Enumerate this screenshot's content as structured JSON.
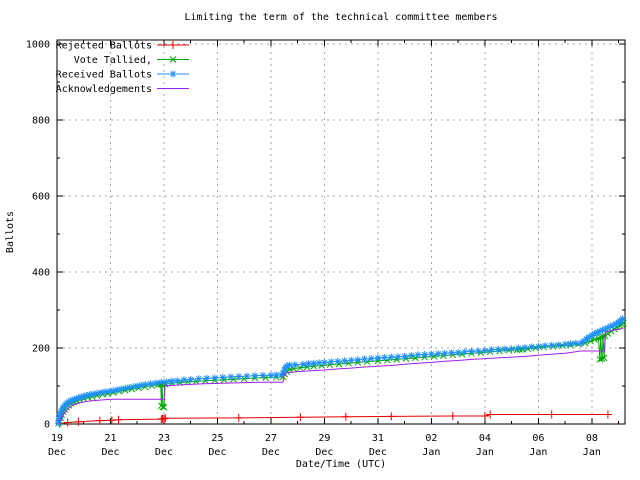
{
  "chart_data": {
    "type": "line",
    "title": "Limiting the term of the technical committee members",
    "xlabel": "Date/Time (UTC)",
    "ylabel": "Ballots",
    "ylim": [
      0,
      1000
    ],
    "y_display_max": 1010.5,
    "y_major_step": 200,
    "y_minor_step": 100,
    "x_max_days": 21.24,
    "grid": true,
    "legend_position": "top-left",
    "grid_color": "#a8a8a8",
    "x_ticks": [
      {
        "day": 0,
        "line1": "19",
        "line2": "Dec"
      },
      {
        "day": 2,
        "line1": "21",
        "line2": "Dec"
      },
      {
        "day": 4,
        "line1": "23",
        "line2": "Dec"
      },
      {
        "day": 6,
        "line1": "25",
        "line2": "Dec"
      },
      {
        "day": 8,
        "line1": "27",
        "line2": "Dec"
      },
      {
        "day": 10,
        "line1": "29",
        "line2": "Dec"
      },
      {
        "day": 12,
        "line1": "31",
        "line2": "Dec"
      },
      {
        "day": 14,
        "line1": "02",
        "line2": "Jan"
      },
      {
        "day": 16,
        "line1": "04",
        "line2": "Jan"
      },
      {
        "day": 18,
        "line1": "06",
        "line2": "Jan"
      },
      {
        "day": 20,
        "line1": "08",
        "line2": "Jan"
      }
    ],
    "y_tick_labels": [
      "0",
      "200",
      "400",
      "600",
      "800",
      "1000"
    ],
    "series": [
      {
        "name": "Rejected Ballots",
        "color": "#e60000",
        "marker": "plus",
        "points": [
          [
            0.1,
            1
          ],
          [
            0.4,
            4
          ],
          [
            0.8,
            6
          ],
          [
            1.6,
            9
          ],
          [
            2.05,
            10
          ],
          [
            2.3,
            11
          ],
          [
            3.9,
            13
          ],
          [
            3.95,
            14
          ],
          [
            4.0,
            14
          ],
          [
            4.05,
            15
          ],
          [
            6.8,
            16
          ],
          [
            9.1,
            18
          ],
          [
            10.8,
            19
          ],
          [
            12.5,
            20
          ],
          [
            14.8,
            21
          ],
          [
            16.0,
            21
          ],
          [
            16.2,
            25
          ],
          [
            18.5,
            25
          ],
          [
            20.6,
            25
          ]
        ]
      },
      {
        "name": "Vote Tallied,",
        "color": "#00a800",
        "marker": "cross",
        "points": [
          [
            0.06,
            2
          ],
          [
            0.1,
            8
          ],
          [
            0.14,
            16
          ],
          [
            0.18,
            24
          ],
          [
            0.23,
            32
          ],
          [
            0.29,
            38
          ],
          [
            0.36,
            44
          ],
          [
            0.44,
            49
          ],
          [
            0.53,
            54
          ],
          [
            0.63,
            58
          ],
          [
            0.74,
            61
          ],
          [
            0.86,
            64
          ],
          [
            1.0,
            67
          ],
          [
            1.15,
            70
          ],
          [
            1.32,
            72
          ],
          [
            1.5,
            75
          ],
          [
            1.7,
            78
          ],
          [
            1.9,
            80
          ],
          [
            2.1,
            83
          ],
          [
            2.32,
            86
          ],
          [
            2.55,
            89
          ],
          [
            2.8,
            92
          ],
          [
            3.05,
            95
          ],
          [
            3.3,
            98
          ],
          [
            3.55,
            101
          ],
          [
            3.8,
            104
          ],
          [
            3.88,
            105
          ],
          [
            3.9,
            48
          ],
          [
            3.93,
            104
          ],
          [
            3.96,
            45
          ],
          [
            4.0,
            44
          ],
          [
            4.03,
            105
          ],
          [
            4.06,
            107
          ],
          [
            4.3,
            108
          ],
          [
            4.6,
            109
          ],
          [
            4.9,
            111
          ],
          [
            5.2,
            112
          ],
          [
            5.55,
            114
          ],
          [
            5.9,
            115
          ],
          [
            6.25,
            116
          ],
          [
            6.6,
            118
          ],
          [
            7.0,
            119
          ],
          [
            7.4,
            121
          ],
          [
            7.8,
            122
          ],
          [
            8.2,
            123
          ],
          [
            8.45,
            124
          ],
          [
            8.52,
            131
          ],
          [
            8.6,
            138
          ],
          [
            8.7,
            143
          ],
          [
            8.85,
            146
          ],
          [
            9.1,
            148
          ],
          [
            9.35,
            150
          ],
          [
            9.6,
            152
          ],
          [
            9.9,
            154
          ],
          [
            10.2,
            156
          ],
          [
            10.55,
            158
          ],
          [
            10.9,
            160
          ],
          [
            11.25,
            162
          ],
          [
            11.6,
            164
          ],
          [
            12.0,
            166
          ],
          [
            12.35,
            168
          ],
          [
            12.7,
            170
          ],
          [
            13.05,
            172
          ],
          [
            13.4,
            174
          ],
          [
            13.75,
            176
          ],
          [
            14.1,
            178
          ],
          [
            14.45,
            180
          ],
          [
            14.8,
            182
          ],
          [
            15.15,
            184
          ],
          [
            15.5,
            186
          ],
          [
            15.85,
            188
          ],
          [
            16.2,
            190
          ],
          [
            16.55,
            192
          ],
          [
            16.9,
            194
          ],
          [
            17.2,
            195
          ],
          [
            17.3,
            196
          ],
          [
            17.4,
            196
          ],
          [
            17.6,
            198
          ],
          [
            17.9,
            200
          ],
          [
            18.2,
            202
          ],
          [
            18.55,
            204
          ],
          [
            18.9,
            206
          ],
          [
            19.2,
            208
          ],
          [
            19.5,
            210
          ],
          [
            19.75,
            213
          ],
          [
            19.95,
            218
          ],
          [
            20.1,
            222
          ],
          [
            20.25,
            226
          ],
          [
            20.3,
            170
          ],
          [
            20.33,
            228
          ],
          [
            20.38,
            172
          ],
          [
            20.42,
            230
          ],
          [
            20.46,
            174
          ],
          [
            20.5,
            232
          ],
          [
            20.6,
            238
          ],
          [
            20.72,
            244
          ],
          [
            20.85,
            250
          ],
          [
            20.95,
            255
          ],
          [
            21.05,
            259
          ],
          [
            21.12,
            262
          ],
          [
            21.18,
            265
          ]
        ]
      },
      {
        "name": "Received Ballots",
        "color": "#1e90ff",
        "marker": "asterisk",
        "points": [
          [
            0.05,
            3
          ],
          [
            0.08,
            10
          ],
          [
            0.1,
            18
          ],
          [
            0.12,
            25
          ],
          [
            0.14,
            30
          ],
          [
            0.17,
            35
          ],
          [
            0.2,
            40
          ],
          [
            0.24,
            44
          ],
          [
            0.28,
            48
          ],
          [
            0.33,
            52
          ],
          [
            0.38,
            55
          ],
          [
            0.44,
            58
          ],
          [
            0.5,
            61
          ],
          [
            0.57,
            63
          ],
          [
            0.64,
            65
          ],
          [
            0.72,
            67
          ],
          [
            0.8,
            69
          ],
          [
            0.9,
            71
          ],
          [
            1.0,
            73
          ],
          [
            1.1,
            75
          ],
          [
            1.22,
            77
          ],
          [
            1.35,
            79
          ],
          [
            1.5,
            81
          ],
          [
            1.65,
            83
          ],
          [
            1.8,
            85
          ],
          [
            1.95,
            86
          ],
          [
            2.1,
            88
          ],
          [
            2.25,
            90
          ],
          [
            2.4,
            92
          ],
          [
            2.55,
            94
          ],
          [
            2.7,
            96
          ],
          [
            2.85,
            98
          ],
          [
            3.0,
            100
          ],
          [
            3.15,
            102
          ],
          [
            3.3,
            104
          ],
          [
            3.5,
            106
          ],
          [
            3.7,
            108
          ],
          [
            3.9,
            110
          ],
          [
            4.1,
            111
          ],
          [
            4.3,
            113
          ],
          [
            4.5,
            114
          ],
          [
            4.75,
            116
          ],
          [
            5.0,
            117
          ],
          [
            5.3,
            119
          ],
          [
            5.6,
            120
          ],
          [
            5.9,
            121
          ],
          [
            6.2,
            123
          ],
          [
            6.5,
            124
          ],
          [
            6.8,
            125
          ],
          [
            7.1,
            126
          ],
          [
            7.4,
            127
          ],
          [
            7.7,
            128
          ],
          [
            8.0,
            128
          ],
          [
            8.2,
            129
          ],
          [
            8.4,
            129
          ],
          [
            8.45,
            133
          ],
          [
            8.5,
            142
          ],
          [
            8.55,
            149
          ],
          [
            8.6,
            153
          ],
          [
            8.7,
            155
          ],
          [
            8.9,
            156
          ],
          [
            9.2,
            157
          ],
          [
            9.4,
            159
          ],
          [
            9.6,
            160
          ],
          [
            9.8,
            161
          ],
          [
            10.0,
            162
          ],
          [
            10.25,
            164
          ],
          [
            10.5,
            165
          ],
          [
            10.75,
            166
          ],
          [
            11.0,
            168
          ],
          [
            11.25,
            169
          ],
          [
            11.5,
            171
          ],
          [
            11.75,
            172
          ],
          [
            12.0,
            174
          ],
          [
            12.25,
            175
          ],
          [
            12.5,
            176
          ],
          [
            12.75,
            177
          ],
          [
            13.0,
            178
          ],
          [
            13.25,
            180
          ],
          [
            13.5,
            182
          ],
          [
            13.75,
            183
          ],
          [
            14.0,
            184
          ],
          [
            14.25,
            185
          ],
          [
            14.5,
            186
          ],
          [
            14.75,
            187
          ],
          [
            15.0,
            188
          ],
          [
            15.25,
            190
          ],
          [
            15.5,
            191
          ],
          [
            15.75,
            192
          ],
          [
            16.0,
            193
          ],
          [
            16.25,
            195
          ],
          [
            16.5,
            196
          ],
          [
            16.75,
            197
          ],
          [
            17.0,
            198
          ],
          [
            17.25,
            200
          ],
          [
            17.5,
            201
          ],
          [
            17.75,
            203
          ],
          [
            18.0,
            204
          ],
          [
            18.25,
            206
          ],
          [
            18.5,
            207
          ],
          [
            18.75,
            208
          ],
          [
            19.0,
            210
          ],
          [
            19.2,
            211
          ],
          [
            19.4,
            212
          ],
          [
            19.6,
            213
          ],
          [
            19.7,
            218
          ],
          [
            19.8,
            224
          ],
          [
            19.9,
            229
          ],
          [
            20.0,
            233
          ],
          [
            20.1,
            237
          ],
          [
            20.2,
            241
          ],
          [
            20.3,
            244
          ],
          [
            20.4,
            247
          ],
          [
            20.5,
            250
          ],
          [
            20.6,
            253
          ],
          [
            20.7,
            257
          ],
          [
            20.8,
            260
          ],
          [
            20.9,
            263
          ],
          [
            21.0,
            267
          ],
          [
            21.05,
            270
          ],
          [
            21.1,
            273
          ],
          [
            21.15,
            277
          ]
        ]
      },
      {
        "name": "Acknowledgements",
        "color": "#a020f0",
        "marker": "none",
        "points": [
          [
            0.08,
            4
          ],
          [
            0.15,
            14
          ],
          [
            0.25,
            26
          ],
          [
            0.35,
            36
          ],
          [
            0.45,
            43
          ],
          [
            0.6,
            50
          ],
          [
            0.8,
            55
          ],
          [
            1.0,
            58
          ],
          [
            1.3,
            61
          ],
          [
            1.6,
            63
          ],
          [
            2.0,
            65
          ],
          [
            4.02,
            65
          ],
          [
            4.04,
            100
          ],
          [
            4.4,
            102
          ],
          [
            4.9,
            104
          ],
          [
            5.5,
            106
          ],
          [
            6.2,
            107
          ],
          [
            7.0,
            109
          ],
          [
            7.9,
            110
          ],
          [
            8.45,
            110
          ],
          [
            8.5,
            132
          ],
          [
            8.6,
            135
          ],
          [
            9.0,
            138
          ],
          [
            9.5,
            140
          ],
          [
            10.0,
            142
          ],
          [
            10.5,
            145
          ],
          [
            11.0,
            147
          ],
          [
            11.5,
            150
          ],
          [
            12.0,
            152
          ],
          [
            12.5,
            154
          ],
          [
            13.0,
            157
          ],
          [
            13.5,
            160
          ],
          [
            14.0,
            162
          ],
          [
            14.5,
            165
          ],
          [
            15.0,
            167
          ],
          [
            15.5,
            170
          ],
          [
            16.0,
            172
          ],
          [
            16.5,
            174
          ],
          [
            17.0,
            176
          ],
          [
            17.5,
            178
          ],
          [
            18.0,
            181
          ],
          [
            18.5,
            184
          ],
          [
            19.0,
            186
          ],
          [
            19.4,
            190
          ],
          [
            19.6,
            192
          ],
          [
            20.48,
            192
          ],
          [
            20.5,
            242
          ],
          [
            20.7,
            245
          ],
          [
            20.9,
            248
          ],
          [
            21.05,
            250
          ],
          [
            21.18,
            253
          ]
        ]
      }
    ]
  }
}
